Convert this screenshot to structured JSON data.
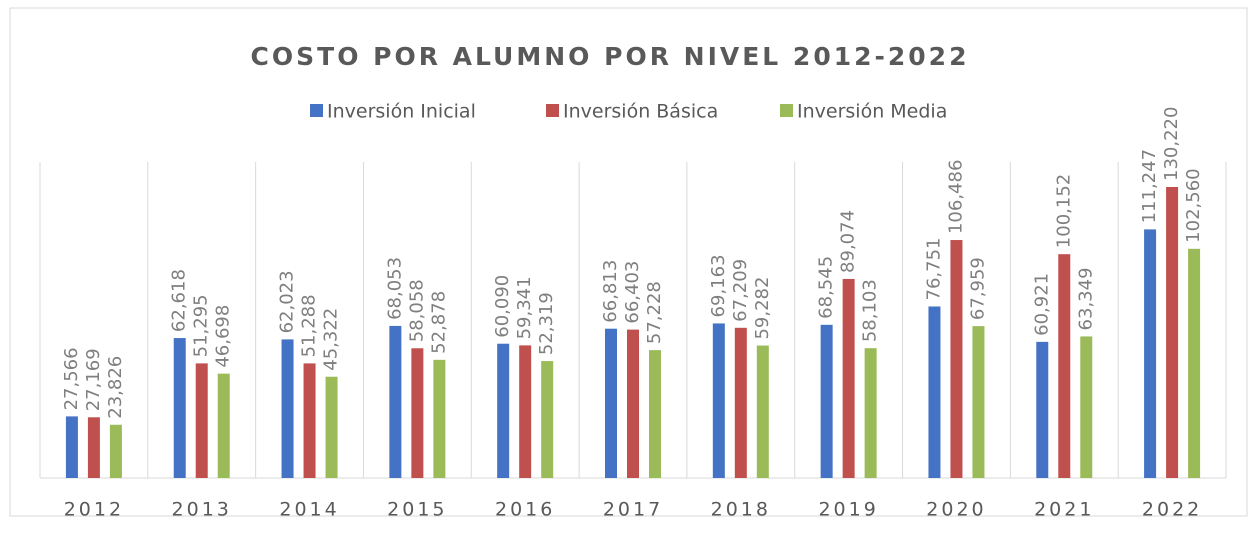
{
  "chart_data": {
    "type": "bar",
    "title": "COSTO POR ALUMNO POR NIVEL 2012-2022",
    "categories": [
      "2012",
      "2013",
      "2014",
      "2015",
      "2016",
      "2017",
      "2018",
      "2019",
      "2020",
      "2021",
      "2022"
    ],
    "series": [
      {
        "name": "Inversión Inicial",
        "color": "#4472c4",
        "values": [
          27566,
          62618,
          62023,
          68053,
          60090,
          66813,
          69163,
          68545,
          76751,
          60921,
          111247
        ],
        "value_labels": [
          "27,566",
          "62,618",
          "62,023",
          "68,053",
          "60,090",
          "66,813",
          "69,163",
          "68,545",
          "76,751",
          "60,921",
          "111,247"
        ]
      },
      {
        "name": "Inversión Básica",
        "color": "#c0504d",
        "values": [
          27169,
          51295,
          51288,
          58058,
          59341,
          66403,
          67209,
          89074,
          106486,
          100152,
          130220
        ],
        "value_labels": [
          "27,169",
          "51,295",
          "51,288",
          "58,058",
          "59,341",
          "66,403",
          "67,209",
          "89,074",
          "106,486",
          "100,152",
          "130,220"
        ]
      },
      {
        "name": "Inversión Media",
        "color": "#9bbb59",
        "values": [
          23826,
          46698,
          45322,
          52878,
          52319,
          57228,
          59282,
          58103,
          67959,
          63349,
          102560
        ],
        "value_labels": [
          "23,826",
          "46,698",
          "45,322",
          "52,878",
          "52,319",
          "57,228",
          "59,282",
          "58,103",
          "67,959",
          "63,349",
          "102,560"
        ]
      }
    ]
  }
}
